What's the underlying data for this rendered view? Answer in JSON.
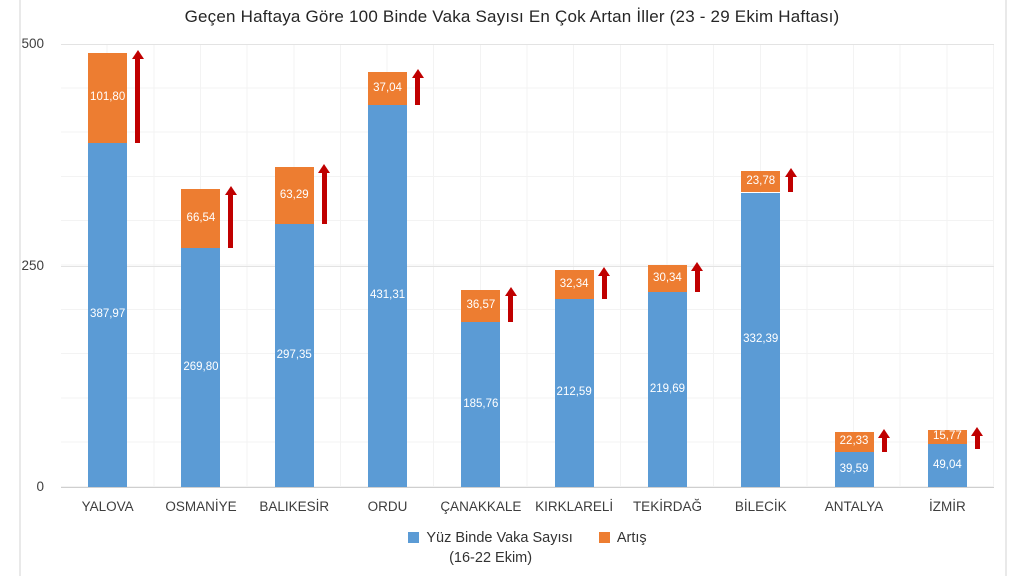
{
  "chart_data": {
    "type": "bar",
    "stacked": true,
    "title": "Geçen Haftaya Göre 100 Binde Vaka Sayısı En Çok Artan İller (23 - 29 Ekim Haftası)",
    "categories": [
      "YALOVA",
      "OSMANİYE",
      "BALIKESİR",
      "ORDU",
      "ÇANAKKALE",
      "KIRKLARELİ",
      "TEKİRDAĞ",
      "BİLECİK",
      "ANTALYA",
      "İZMİR"
    ],
    "series": [
      {
        "name": "Yüz Binde Vaka Sayısı (16-22 Ekim)",
        "color": "#5B9BD5",
        "values": [
          387.97,
          269.8,
          297.35,
          431.31,
          185.76,
          212.59,
          219.69,
          332.39,
          39.59,
          49.04
        ]
      },
      {
        "name": "Artış",
        "color": "#ED7D31",
        "values": [
          101.8,
          66.54,
          63.29,
          37.04,
          36.57,
          32.34,
          30.34,
          23.78,
          22.33,
          15.77
        ]
      }
    ],
    "value_label_decimal_separator": ",",
    "ylim": [
      0,
      500
    ],
    "yticks": [
      0,
      250,
      500
    ],
    "grid": true,
    "increase_arrow_color": "#C00000",
    "legend_position": "bottom",
    "legend": [
      {
        "label": "Yüz Binde Vaka Sayısı",
        "sublabel": "(16-22 Ekim)",
        "color": "#5B9BD5"
      },
      {
        "label": "Artış",
        "color": "#ED7D31"
      }
    ]
  }
}
